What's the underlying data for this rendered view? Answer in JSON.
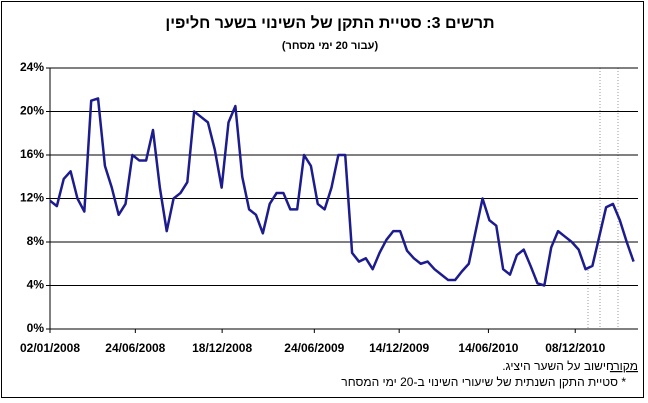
{
  "chart_data": {
    "type": "line",
    "title": "תרשים 3: סטיית התקן של השינוי בשער חליפין",
    "subtitle": "(עבור 20 ימי מסחר)",
    "source_label": "מקור:",
    "source": "חישוב על השער היציג.",
    "footnote": "* סטיית התקן השנתית של שיעורי השינוי ב-20 ימי המסחר",
    "color": "#1c1c8e",
    "grid": true,
    "x": [
      "02/01/2008",
      "16/01/2008",
      "30/01/2008",
      "13/02/2008",
      "27/02/2008",
      "12/03/2008",
      "26/03/2008",
      "09/04/2008",
      "23/04/2008",
      "07/05/2008",
      "21/05/2008",
      "04/06/2008",
      "18/06/2008",
      "02/07/2008",
      "16/07/2008",
      "30/07/2008",
      "13/08/2008",
      "27/08/2008",
      "10/09/2008",
      "24/09/2008",
      "08/10/2008",
      "22/10/2008",
      "05/11/2008",
      "19/11/2008",
      "03/12/2008",
      "17/12/2008",
      "31/12/2008",
      "14/01/2009",
      "28/01/2009",
      "11/02/2009",
      "25/02/2009",
      "11/03/2009",
      "25/03/2009",
      "08/04/2009",
      "22/04/2009",
      "06/05/2009",
      "20/05/2009",
      "03/06/2009",
      "17/06/2009",
      "01/07/2009",
      "15/07/2009",
      "29/07/2009",
      "12/08/2009",
      "26/08/2009",
      "09/09/2009",
      "23/09/2009",
      "07/10/2009",
      "21/10/2009",
      "04/11/2009",
      "18/11/2009",
      "02/12/2009",
      "16/12/2009",
      "30/12/2009",
      "13/01/2010",
      "27/01/2010",
      "10/02/2010",
      "24/02/2010",
      "10/03/2010",
      "24/03/2010",
      "07/04/2010",
      "21/04/2010",
      "05/05/2010",
      "19/05/2010",
      "02/06/2010",
      "16/06/2010",
      "30/06/2010",
      "14/07/2010",
      "28/07/2010",
      "11/08/2010",
      "25/08/2010",
      "08/09/2010",
      "22/09/2010",
      "06/10/2010",
      "20/10/2010",
      "03/11/2010",
      "17/11/2010",
      "01/12/2010",
      "15/12/2010",
      "29/12/2010",
      "12/01/2011",
      "26/01/2011",
      "09/02/2011",
      "23/02/2011",
      "09/03/2011",
      "23/03/2011",
      "06/04/2011"
    ],
    "values": [
      11.8,
      11.3,
      13.8,
      14.5,
      12,
      10.8,
      21,
      21.2,
      15,
      13,
      10.5,
      11.5,
      16,
      15.5,
      15.5,
      18.3,
      13,
      9,
      12,
      12.5,
      13.5,
      20,
      19.5,
      19,
      16.5,
      13,
      19,
      20.5,
      14,
      11,
      10.5,
      8.8,
      11.5,
      12.5,
      12.5,
      11,
      11,
      16,
      15,
      11.5,
      11,
      13,
      16,
      16,
      7,
      6.2,
      6.5,
      5.5,
      7,
      8.2,
      9,
      9,
      7.2,
      6.5,
      6,
      6.2,
      5.5,
      5,
      4.5,
      4.5,
      5.3,
      6,
      9,
      12,
      10,
      9.5,
      5.5,
      5,
      6.8,
      7.3,
      5.8,
      4.2,
      4,
      7.5,
      9,
      8.5,
      8,
      7.3,
      5.5,
      5.8,
      8.5,
      11.2,
      11.5,
      10,
      8,
      6.2
    ],
    "xlim": [
      "02/01/2008",
      "15/04/2011"
    ],
    "xticks": [
      "02/01/2008",
      "24/06/2008",
      "18/12/2008",
      "24/06/2009",
      "14/12/2009",
      "14/06/2010",
      "08/12/2010"
    ],
    "ylim": [
      0,
      24
    ],
    "yticks": [
      {
        "value": 0,
        "label": "0%"
      },
      {
        "value": 4,
        "label": "4%"
      },
      {
        "value": 8,
        "label": "8%"
      },
      {
        "value": 12,
        "label": "12%"
      },
      {
        "value": 16,
        "label": "16%"
      },
      {
        "value": 20,
        "label": "20%"
      },
      {
        "value": 24,
        "label": "24%"
      }
    ]
  }
}
